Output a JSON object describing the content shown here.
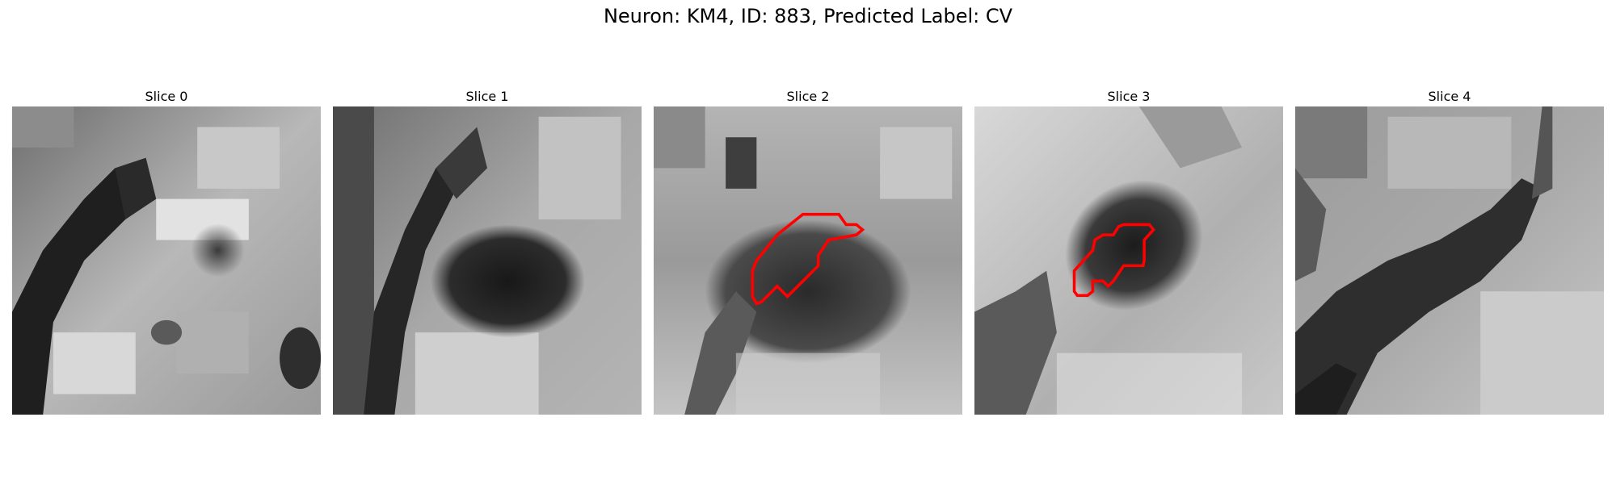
{
  "figure": {
    "title": "Neuron: KM4, ID: 883, Predicted Label: CV"
  },
  "colors": {
    "contour": "#ff0000",
    "background": "#ffffff"
  },
  "panels": [
    {
      "title": "Slice 0",
      "has_contour": false
    },
    {
      "title": "Slice 1",
      "has_contour": false
    },
    {
      "title": "Slice 2",
      "has_contour": true
    },
    {
      "title": "Slice 3",
      "has_contour": true
    },
    {
      "title": "Slice 4",
      "has_contour": false
    }
  ]
}
